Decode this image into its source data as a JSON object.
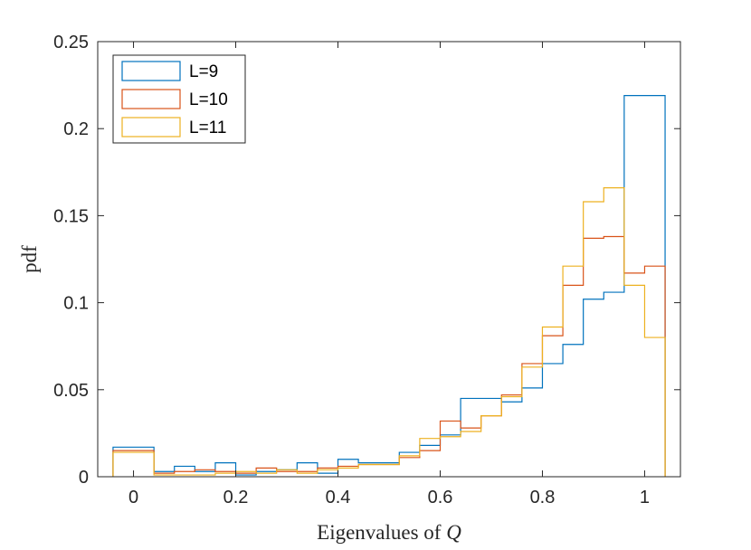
{
  "chart_data": {
    "type": "histogram-stairs",
    "xlabel": "Eigenvalues of Q",
    "ylabel": "pdf",
    "xlim": [
      -0.07,
      1.07
    ],
    "ylim": [
      0,
      0.25
    ],
    "xticks": [
      0,
      0.2,
      0.4,
      0.6,
      0.8,
      1
    ],
    "xtick_labels": [
      "0",
      "0.2",
      "0.4",
      "0.6",
      "0.8",
      "1"
    ],
    "yticks": [
      0,
      0.05,
      0.1,
      0.15,
      0.2,
      0.25
    ],
    "ytick_labels": [
      "0",
      "0.05",
      "0.1",
      "0.15",
      "0.2",
      "0.25"
    ],
    "box": true,
    "grid": false,
    "legend_position": "top-left",
    "bin_edges": [
      -0.04,
      0.04,
      0.12,
      0.2,
      0.28,
      0.36,
      0.44,
      0.52,
      0.6,
      0.68,
      0.76,
      0.84,
      0.92,
      1.0
    ],
    "bin_edges_L11": [
      -0.02,
      0.06,
      0.14,
      0.22,
      0.3,
      0.38,
      0.46,
      0.54,
      0.62,
      0.7,
      0.78,
      0.86,
      0.94,
      1.02
    ],
    "series": [
      {
        "name": "L=9",
        "color": "#0072BD",
        "edges": [
          -0.04,
          0.04,
          0.08,
          0.12,
          0.16,
          0.2,
          0.24,
          0.28,
          0.32,
          0.36,
          0.4,
          0.44,
          0.48,
          0.52,
          0.56,
          0.6,
          0.64,
          0.68,
          0.72,
          0.76,
          0.8,
          0.84,
          0.88,
          0.92,
          0.96,
          1.0,
          1.04
        ],
        "values": [
          0.017,
          0.003,
          0.006,
          0.003,
          0.008,
          0.001,
          0.003,
          0.004,
          0.008,
          0.002,
          0.01,
          0.008,
          0.008,
          0.014,
          0.018,
          0.024,
          0.045,
          0.045,
          0.043,
          0.051,
          0.065,
          0.076,
          0.102,
          0.106,
          0.219,
          0.219
        ]
      },
      {
        "name": "L=10",
        "color": "#D95319",
        "edges": [
          -0.04,
          0.04,
          0.08,
          0.12,
          0.16,
          0.2,
          0.24,
          0.28,
          0.32,
          0.36,
          0.4,
          0.44,
          0.48,
          0.52,
          0.56,
          0.6,
          0.64,
          0.68,
          0.72,
          0.76,
          0.8,
          0.84,
          0.88,
          0.92,
          0.96,
          1.0,
          1.04
        ],
        "values": [
          0.015,
          0.002,
          0.003,
          0.004,
          0.003,
          0.002,
          0.005,
          0.003,
          0.003,
          0.005,
          0.006,
          0.007,
          0.007,
          0.011,
          0.015,
          0.032,
          0.028,
          0.035,
          0.047,
          0.065,
          0.081,
          0.11,
          0.137,
          0.138,
          0.117,
          0.121
        ]
      },
      {
        "name": "L=11",
        "color": "#EDB120",
        "edges": [
          -0.04,
          0.04,
          0.08,
          0.12,
          0.16,
          0.2,
          0.24,
          0.28,
          0.32,
          0.36,
          0.4,
          0.44,
          0.48,
          0.52,
          0.56,
          0.6,
          0.64,
          0.68,
          0.72,
          0.76,
          0.8,
          0.84,
          0.88,
          0.92,
          0.96,
          1.0,
          1.04
        ],
        "values": [
          0.014,
          0.001,
          0.001,
          0.001,
          0.002,
          0.003,
          0.002,
          0.004,
          0.002,
          0.004,
          0.005,
          0.007,
          0.007,
          0.012,
          0.022,
          0.023,
          0.026,
          0.035,
          0.046,
          0.063,
          0.086,
          0.121,
          0.158,
          0.166,
          0.11,
          0.08
        ]
      }
    ]
  }
}
